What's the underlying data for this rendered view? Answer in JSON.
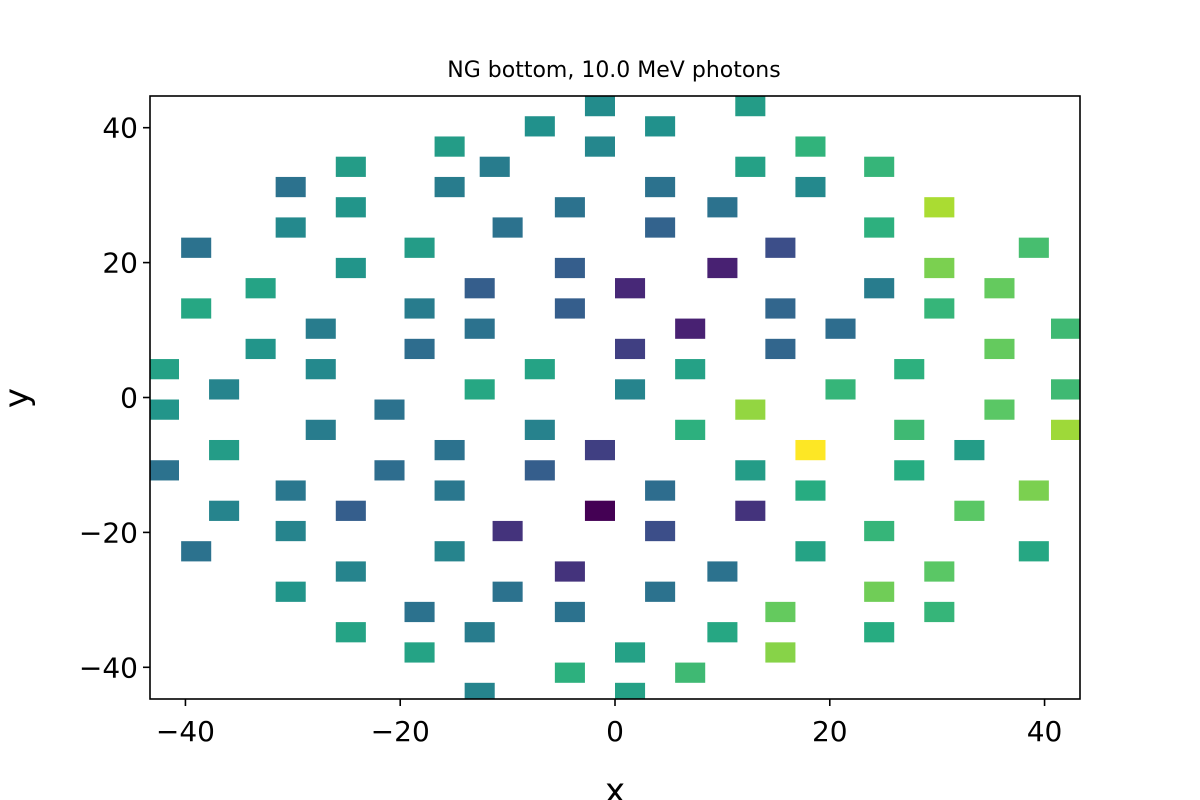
{
  "chart_data": {
    "type": "heatmap",
    "title": "NG bottom, 10.0 MeV photons",
    "xlabel": "x",
    "ylabel": "y",
    "xlim": [
      -43.3,
      43.3
    ],
    "ylim": [
      -44.7,
      44.7
    ],
    "xticks": [
      -40,
      -20,
      0,
      20,
      40
    ],
    "yticks": [
      -40,
      -20,
      0,
      20,
      40
    ],
    "xtick_labels": [
      "−40",
      "−20",
      "0",
      "20",
      "40"
    ],
    "ytick_labels": [
      "−40",
      "−20",
      "0",
      "20",
      "40"
    ],
    "cell_width": 2.8,
    "cell_height": 3.0,
    "colormap": "viridis",
    "colorbar": false,
    "grid": false,
    "points": [
      {
        "x": -1.4,
        "y": 43.2,
        "v": 0.48
      },
      {
        "x": 12.6,
        "y": 43.2,
        "v": 0.55
      },
      {
        "x": -7.0,
        "y": 40.2,
        "v": 0.5
      },
      {
        "x": 4.2,
        "y": 40.2,
        "v": 0.5
      },
      {
        "x": -15.4,
        "y": 37.2,
        "v": 0.55
      },
      {
        "x": -1.4,
        "y": 37.2,
        "v": 0.46
      },
      {
        "x": 18.2,
        "y": 37.2,
        "v": 0.65
      },
      {
        "x": -24.6,
        "y": 34.2,
        "v": 0.55
      },
      {
        "x": -11.2,
        "y": 34.2,
        "v": 0.42
      },
      {
        "x": 12.6,
        "y": 34.2,
        "v": 0.57
      },
      {
        "x": 24.6,
        "y": 34.2,
        "v": 0.66
      },
      {
        "x": -30.2,
        "y": 31.2,
        "v": 0.38
      },
      {
        "x": -15.4,
        "y": 31.2,
        "v": 0.42
      },
      {
        "x": 4.2,
        "y": 31.2,
        "v": 0.38
      },
      {
        "x": 18.2,
        "y": 31.2,
        "v": 0.47
      },
      {
        "x": -24.6,
        "y": 28.2,
        "v": 0.52
      },
      {
        "x": -4.2,
        "y": 28.2,
        "v": 0.38
      },
      {
        "x": 10.0,
        "y": 28.2,
        "v": 0.38
      },
      {
        "x": 30.2,
        "y": 28.2,
        "v": 0.88
      },
      {
        "x": -30.2,
        "y": 25.2,
        "v": 0.47
      },
      {
        "x": -10.0,
        "y": 25.2,
        "v": 0.38
      },
      {
        "x": 4.2,
        "y": 25.2,
        "v": 0.32
      },
      {
        "x": 24.6,
        "y": 25.2,
        "v": 0.64
      },
      {
        "x": -39.0,
        "y": 22.2,
        "v": 0.38
      },
      {
        "x": -18.2,
        "y": 22.2,
        "v": 0.55
      },
      {
        "x": 15.4,
        "y": 22.2,
        "v": 0.24
      },
      {
        "x": 39.0,
        "y": 22.2,
        "v": 0.7
      },
      {
        "x": -24.6,
        "y": 19.2,
        "v": 0.52
      },
      {
        "x": -4.2,
        "y": 19.2,
        "v": 0.3
      },
      {
        "x": 10.0,
        "y": 19.2,
        "v": 0.12
      },
      {
        "x": 30.2,
        "y": 19.2,
        "v": 0.8
      },
      {
        "x": -33.0,
        "y": 16.2,
        "v": 0.58
      },
      {
        "x": -12.6,
        "y": 16.2,
        "v": 0.3
      },
      {
        "x": 1.4,
        "y": 16.2,
        "v": 0.14
      },
      {
        "x": 24.6,
        "y": 16.2,
        "v": 0.42
      },
      {
        "x": 35.8,
        "y": 16.2,
        "v": 0.76
      },
      {
        "x": -39.0,
        "y": 13.2,
        "v": 0.6
      },
      {
        "x": -18.2,
        "y": 13.2,
        "v": 0.42
      },
      {
        "x": -4.2,
        "y": 13.2,
        "v": 0.3
      },
      {
        "x": 15.4,
        "y": 13.2,
        "v": 0.33
      },
      {
        "x": 30.2,
        "y": 13.2,
        "v": 0.66
      },
      {
        "x": -27.4,
        "y": 10.2,
        "v": 0.42
      },
      {
        "x": -12.6,
        "y": 10.2,
        "v": 0.38
      },
      {
        "x": 7.0,
        "y": 10.2,
        "v": 0.12
      },
      {
        "x": 21.0,
        "y": 10.2,
        "v": 0.36
      },
      {
        "x": 42.0,
        "y": 10.2,
        "v": 0.68
      },
      {
        "x": -33.0,
        "y": 7.2,
        "v": 0.52
      },
      {
        "x": -18.2,
        "y": 7.2,
        "v": 0.36
      },
      {
        "x": 1.4,
        "y": 7.2,
        "v": 0.2
      },
      {
        "x": 15.4,
        "y": 7.2,
        "v": 0.33
      },
      {
        "x": 35.8,
        "y": 7.2,
        "v": 0.76
      },
      {
        "x": -42.0,
        "y": 4.2,
        "v": 0.57
      },
      {
        "x": -27.4,
        "y": 4.2,
        "v": 0.47
      },
      {
        "x": -7.0,
        "y": 4.2,
        "v": 0.58
      },
      {
        "x": 7.0,
        "y": 4.2,
        "v": 0.57
      },
      {
        "x": 27.4,
        "y": 4.2,
        "v": 0.64
      },
      {
        "x": -36.4,
        "y": 1.2,
        "v": 0.45
      },
      {
        "x": -12.6,
        "y": 1.2,
        "v": 0.6
      },
      {
        "x": 1.4,
        "y": 1.2,
        "v": 0.45
      },
      {
        "x": 21.0,
        "y": 1.2,
        "v": 0.66
      },
      {
        "x": 42.0,
        "y": 1.2,
        "v": 0.68
      },
      {
        "x": -42.0,
        "y": -1.8,
        "v": 0.52
      },
      {
        "x": -21.0,
        "y": -1.8,
        "v": 0.38
      },
      {
        "x": 12.6,
        "y": -1.8,
        "v": 0.84
      },
      {
        "x": 35.8,
        "y": -1.8,
        "v": 0.74
      },
      {
        "x": -27.4,
        "y": -4.8,
        "v": 0.42
      },
      {
        "x": -7.0,
        "y": -4.8,
        "v": 0.44
      },
      {
        "x": 7.0,
        "y": -4.8,
        "v": 0.64
      },
      {
        "x": 27.4,
        "y": -4.8,
        "v": 0.68
      },
      {
        "x": 42.0,
        "y": -4.8,
        "v": 0.86
      },
      {
        "x": -36.4,
        "y": -7.8,
        "v": 0.55
      },
      {
        "x": -15.4,
        "y": -7.8,
        "v": 0.38
      },
      {
        "x": -1.4,
        "y": -7.8,
        "v": 0.2
      },
      {
        "x": 18.2,
        "y": -7.8,
        "v": 1.0
      },
      {
        "x": 33.0,
        "y": -7.8,
        "v": 0.55
      },
      {
        "x": -42.0,
        "y": -10.8,
        "v": 0.38
      },
      {
        "x": -21.0,
        "y": -10.8,
        "v": 0.36
      },
      {
        "x": -7.0,
        "y": -10.8,
        "v": 0.3
      },
      {
        "x": 12.6,
        "y": -10.8,
        "v": 0.55
      },
      {
        "x": 27.4,
        "y": -10.8,
        "v": 0.62
      },
      {
        "x": -30.2,
        "y": -13.8,
        "v": 0.4
      },
      {
        "x": -15.4,
        "y": -13.8,
        "v": 0.4
      },
      {
        "x": 4.2,
        "y": -13.8,
        "v": 0.36
      },
      {
        "x": 18.2,
        "y": -13.8,
        "v": 0.62
      },
      {
        "x": 39.0,
        "y": -13.8,
        "v": 0.8
      },
      {
        "x": -36.4,
        "y": -16.8,
        "v": 0.45
      },
      {
        "x": -24.6,
        "y": -16.8,
        "v": 0.3
      },
      {
        "x": -1.4,
        "y": -16.8,
        "v": 0.0
      },
      {
        "x": 12.6,
        "y": -16.8,
        "v": 0.17
      },
      {
        "x": 33.0,
        "y": -16.8,
        "v": 0.74
      },
      {
        "x": -30.2,
        "y": -19.8,
        "v": 0.45
      },
      {
        "x": -10.0,
        "y": -19.8,
        "v": 0.17
      },
      {
        "x": 4.2,
        "y": -19.8,
        "v": 0.24
      },
      {
        "x": 24.6,
        "y": -19.8,
        "v": 0.66
      },
      {
        "x": -39.0,
        "y": -22.8,
        "v": 0.38
      },
      {
        "x": -15.4,
        "y": -22.8,
        "v": 0.45
      },
      {
        "x": 18.2,
        "y": -22.8,
        "v": 0.58
      },
      {
        "x": 39.0,
        "y": -22.8,
        "v": 0.6
      },
      {
        "x": -24.6,
        "y": -25.8,
        "v": 0.45
      },
      {
        "x": -4.2,
        "y": -25.8,
        "v": 0.17
      },
      {
        "x": 10.0,
        "y": -25.8,
        "v": 0.38
      },
      {
        "x": 30.2,
        "y": -25.8,
        "v": 0.74
      },
      {
        "x": -30.2,
        "y": -28.8,
        "v": 0.52
      },
      {
        "x": -10.0,
        "y": -28.8,
        "v": 0.38
      },
      {
        "x": 4.2,
        "y": -28.8,
        "v": 0.38
      },
      {
        "x": 24.6,
        "y": -28.8,
        "v": 0.78
      },
      {
        "x": -18.2,
        "y": -31.8,
        "v": 0.38
      },
      {
        "x": -4.2,
        "y": -31.8,
        "v": 0.38
      },
      {
        "x": 15.4,
        "y": -31.8,
        "v": 0.76
      },
      {
        "x": 30.2,
        "y": -31.8,
        "v": 0.66
      },
      {
        "x": -24.6,
        "y": -34.8,
        "v": 0.58
      },
      {
        "x": -12.6,
        "y": -34.8,
        "v": 0.42
      },
      {
        "x": 10.0,
        "y": -34.8,
        "v": 0.6
      },
      {
        "x": 24.6,
        "y": -34.8,
        "v": 0.62
      },
      {
        "x": -18.2,
        "y": -37.8,
        "v": 0.58
      },
      {
        "x": 1.4,
        "y": -37.8,
        "v": 0.57
      },
      {
        "x": 15.4,
        "y": -37.8,
        "v": 0.82
      },
      {
        "x": -4.2,
        "y": -40.8,
        "v": 0.64
      },
      {
        "x": 7.0,
        "y": -40.8,
        "v": 0.68
      },
      {
        "x": -12.6,
        "y": -43.8,
        "v": 0.45
      },
      {
        "x": 1.4,
        "y": -43.8,
        "v": 0.57
      }
    ]
  }
}
